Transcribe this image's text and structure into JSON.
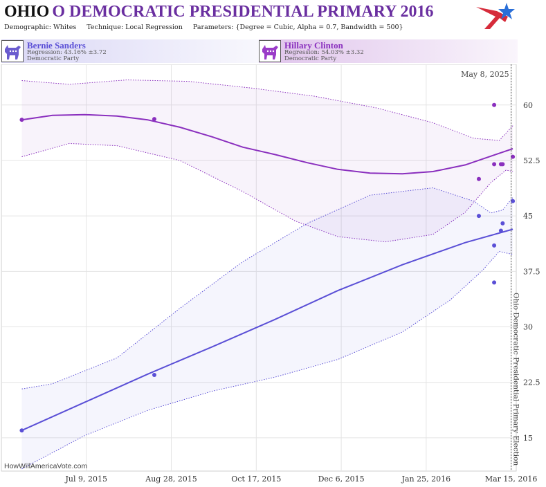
{
  "header": {
    "state": "OHIO",
    "title_rest": "O DEMOCRATIC PRESIDENTIAL PRIMARY 2016",
    "demographic": "Demographic: Whites",
    "technique": "Technique: Local Regression",
    "parameters": "Parameters: {Degree = Cubic, Alpha = 0.7, Bandwidth = 500}",
    "logo_icon": "star-flag-logo-icon"
  },
  "candidates": [
    {
      "name": "Bernie Sanders",
      "regression": "Regression: 43.16% ±3.72",
      "party": "Democratic Party",
      "color": "#5a4fd6",
      "icon": "donkey-icon"
    },
    {
      "name": "Hillary Clinton",
      "regression": "Regression: 54.03% ±3.32",
      "party": "Democratic Party",
      "color": "#8a2fbe",
      "icon": "donkey-icon"
    }
  ],
  "watermark": "HowWillAmericaVote.com",
  "chart_data": {
    "type": "line",
    "date_label": "May 8, 2025",
    "event_label": "Ohio Democratic Presidential Primary Election",
    "event_date": "2016-03-15",
    "x_range": [
      "2015-05-20",
      "2016-03-18"
    ],
    "ylim": [
      10.5,
      65.5
    ],
    "y_ticks": [
      "15",
      "22.5",
      "30",
      "37.5",
      "45",
      "52.5",
      "60"
    ],
    "x_ticks": [
      {
        "label": "Jul 9, 2015",
        "date": "2015-07-09"
      },
      {
        "label": "Aug 28, 2015",
        "date": "2015-08-28"
      },
      {
        "label": "Oct 17, 2015",
        "date": "2015-10-17"
      },
      {
        "label": "Dec 6, 2015",
        "date": "2015-12-06"
      },
      {
        "label": "Jan 25, 2016",
        "date": "2016-01-25"
      },
      {
        "label": "Mar 15, 2016",
        "date": "2016-03-15"
      }
    ],
    "grid": true,
    "series": [
      {
        "name": "Hillary Clinton",
        "color": "#8a2fbe",
        "fill": "#8a2fbe",
        "line": [
          [
            "2015-06-01",
            58.0
          ],
          [
            "2015-06-19",
            58.6
          ],
          [
            "2015-07-08",
            58.7
          ],
          [
            "2015-07-27",
            58.5
          ],
          [
            "2015-08-14",
            58.0
          ],
          [
            "2015-09-02",
            57.0
          ],
          [
            "2015-09-21",
            55.7
          ],
          [
            "2015-10-09",
            54.3
          ],
          [
            "2015-10-28",
            53.3
          ],
          [
            "2015-11-16",
            52.2
          ],
          [
            "2015-12-04",
            51.3
          ],
          [
            "2015-12-23",
            50.8
          ],
          [
            "2016-01-11",
            50.7
          ],
          [
            "2016-01-29",
            51.0
          ],
          [
            "2016-02-17",
            51.9
          ],
          [
            "2016-03-07",
            53.4
          ],
          [
            "2016-03-16",
            54.1
          ]
        ],
        "upper": [
          [
            "2015-06-01",
            63.3
          ],
          [
            "2015-06-29",
            62.8
          ],
          [
            "2015-08-02",
            63.4
          ],
          [
            "2015-09-07",
            63.2
          ],
          [
            "2015-10-14",
            62.3
          ],
          [
            "2015-11-20",
            61.2
          ],
          [
            "2015-12-27",
            59.6
          ],
          [
            "2016-01-29",
            57.6
          ],
          [
            "2016-02-22",
            55.5
          ],
          [
            "2016-03-08",
            55.2
          ],
          [
            "2016-03-16",
            57.2
          ]
        ],
        "lower": [
          [
            "2015-06-01",
            53.0
          ],
          [
            "2015-06-29",
            54.8
          ],
          [
            "2015-07-27",
            54.5
          ],
          [
            "2015-09-02",
            52.5
          ],
          [
            "2015-10-09",
            48.3
          ],
          [
            "2015-11-09",
            44.3
          ],
          [
            "2015-12-04",
            42.2
          ],
          [
            "2016-01-01",
            41.5
          ],
          [
            "2016-01-29",
            42.5
          ],
          [
            "2016-02-17",
            45.5
          ],
          [
            "2016-03-03",
            49.5
          ],
          [
            "2016-03-12",
            51.2
          ],
          [
            "2016-03-16",
            51.0
          ]
        ],
        "points": [
          [
            "2015-06-01",
            58.0
          ],
          [
            "2015-08-18",
            58.1
          ],
          [
            "2016-02-25",
            50.0
          ],
          [
            "2016-03-05",
            60.0
          ],
          [
            "2016-03-05",
            52.0
          ],
          [
            "2016-03-09",
            52.0
          ],
          [
            "2016-03-10",
            52.0
          ],
          [
            "2016-03-16",
            53.0
          ]
        ]
      },
      {
        "name": "Bernie Sanders",
        "color": "#5a4fd6",
        "fill": "#5a4fd6",
        "line": [
          [
            "2015-06-01",
            16.0
          ],
          [
            "2015-07-08",
            19.8
          ],
          [
            "2015-08-14",
            23.6
          ],
          [
            "2015-09-21",
            27.3
          ],
          [
            "2015-10-28",
            31.0
          ],
          [
            "2015-12-04",
            34.9
          ],
          [
            "2016-01-11",
            38.4
          ],
          [
            "2016-02-17",
            41.4
          ],
          [
            "2016-03-16",
            43.2
          ]
        ],
        "upper": [
          [
            "2015-06-01",
            21.6
          ],
          [
            "2015-06-19",
            22.3
          ],
          [
            "2015-07-27",
            25.8
          ],
          [
            "2015-09-02",
            32.5
          ],
          [
            "2015-10-09",
            38.8
          ],
          [
            "2015-11-16",
            44.0
          ],
          [
            "2015-12-23",
            47.8
          ],
          [
            "2016-01-29",
            48.8
          ],
          [
            "2016-02-22",
            47.0
          ],
          [
            "2016-03-03",
            45.4
          ],
          [
            "2016-03-10",
            45.8
          ],
          [
            "2016-03-16",
            47.5
          ]
        ],
        "lower": [
          [
            "2015-06-01",
            10.8
          ],
          [
            "2015-07-08",
            15.3
          ],
          [
            "2015-08-14",
            18.7
          ],
          [
            "2015-09-21",
            21.3
          ],
          [
            "2015-10-28",
            23.2
          ],
          [
            "2015-12-04",
            25.6
          ],
          [
            "2016-01-11",
            29.3
          ],
          [
            "2016-02-08",
            33.6
          ],
          [
            "2016-02-27",
            37.6
          ],
          [
            "2016-03-08",
            40.2
          ],
          [
            "2016-03-16",
            39.8
          ]
        ],
        "points": [
          [
            "2015-06-01",
            16.0
          ],
          [
            "2015-08-18",
            23.5
          ],
          [
            "2016-02-25",
            45.0
          ],
          [
            "2016-03-05",
            41.0
          ],
          [
            "2016-03-05",
            36.0
          ],
          [
            "2016-03-09",
            43.0
          ],
          [
            "2016-03-10",
            44.0
          ],
          [
            "2016-03-16",
            47.0
          ]
        ]
      }
    ]
  }
}
